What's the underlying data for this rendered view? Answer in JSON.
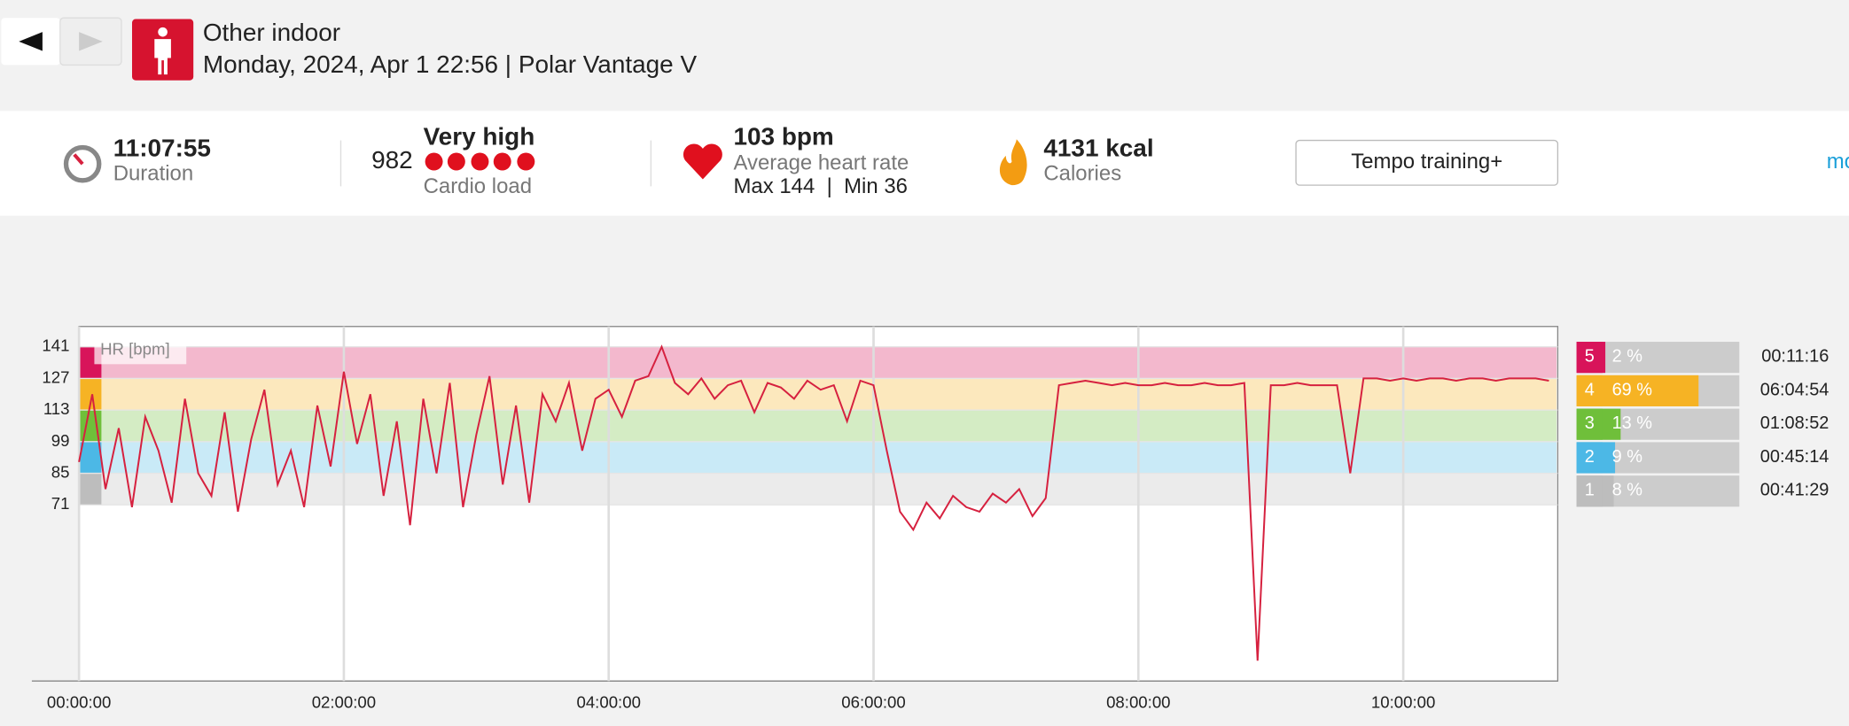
{
  "header": {
    "title": "Other indoor",
    "subtitle": "Monday, 2024, Apr 1 22:56 | Polar Vantage V"
  },
  "stats": {
    "duration": "11:07:55",
    "duration_label": "Duration",
    "cardio_value": "982",
    "cardio_level": "Very high",
    "cardio_label": "Cardio load",
    "avg_hr": "103 bpm",
    "avg_hr_label": "Average heart rate",
    "max_min": "Max 144  |  Min 36",
    "calories": "4131 kcal",
    "calories_label": "Calories",
    "training_button": "Tempo training+",
    "more": "mo"
  },
  "chart_data": {
    "type": "line",
    "y_label": "HR [bpm]",
    "color": "#d6213f",
    "xlim": [
      0,
      40200
    ],
    "ylim": [
      -7,
      150
    ],
    "xticks": [
      {
        "value": 0,
        "label": "00:00:00"
      },
      {
        "value": 7200,
        "label": "02:00:00"
      },
      {
        "value": 14400,
        "label": "04:00:00"
      },
      {
        "value": 21600,
        "label": "06:00:00"
      },
      {
        "value": 28800,
        "label": "08:00:00"
      },
      {
        "value": 36000,
        "label": "10:00:00"
      }
    ],
    "yticks": [
      141,
      127,
      113,
      99,
      85,
      71
    ],
    "x": [
      0,
      360,
      720,
      1080,
      1440,
      1800,
      2160,
      2520,
      2880,
      3240,
      3600,
      3960,
      4320,
      4680,
      5040,
      5400,
      5760,
      6120,
      6480,
      6840,
      7200,
      7560,
      7920,
      8280,
      8640,
      9000,
      9360,
      9720,
      10080,
      10440,
      10800,
      11160,
      11520,
      11880,
      12240,
      12600,
      12960,
      13320,
      13680,
      14040,
      14400,
      14760,
      15120,
      15480,
      15840,
      16200,
      16560,
      16920,
      17280,
      17640,
      18000,
      18360,
      18720,
      19080,
      19440,
      19800,
      20160,
      20520,
      20880,
      21240,
      21600,
      21960,
      22320,
      22680,
      23040,
      23400,
      23760,
      24120,
      24480,
      24840,
      25200,
      25560,
      25920,
      26280,
      26640,
      27000,
      27360,
      27720,
      28080,
      28440,
      28800,
      29160,
      29520,
      29880,
      30240,
      30600,
      30960,
      31320,
      31680,
      32040,
      32400,
      32760,
      33120,
      33480,
      33840,
      34200,
      34560,
      34920,
      35280,
      35640,
      36000,
      36360,
      36720,
      37080,
      37440,
      37800,
      38160,
      38520,
      38880,
      39240,
      39600,
      39960
    ],
    "values": [
      90,
      120,
      78,
      105,
      70,
      110,
      95,
      72,
      118,
      85,
      75,
      112,
      68,
      100,
      122,
      80,
      95,
      70,
      115,
      88,
      130,
      98,
      120,
      75,
      108,
      62,
      118,
      85,
      125,
      70,
      102,
      128,
      80,
      115,
      72,
      120,
      108,
      125,
      95,
      118,
      122,
      110,
      126,
      128,
      141,
      125,
      120,
      127,
      118,
      124,
      126,
      112,
      125,
      123,
      118,
      126,
      122,
      124,
      108,
      126,
      124,
      95,
      68,
      60,
      72,
      65,
      75,
      70,
      68,
      76,
      72,
      78,
      66,
      74,
      124,
      125,
      126,
      125,
      124,
      125,
      124,
      124,
      125,
      124,
      124,
      125,
      124,
      124,
      125,
      2,
      124,
      124,
      125,
      124,
      124,
      124,
      85,
      127,
      127,
      126,
      127,
      126,
      127,
      127,
      126,
      127,
      127,
      126,
      127,
      127,
      127,
      126
    ],
    "zones": {
      "labels": [
        "5",
        "4",
        "3",
        "2",
        "1"
      ],
      "percents": [
        2,
        69,
        13,
        9,
        8
      ],
      "value_labels": [
        "2 %",
        "69 %",
        "13 %",
        "9 %",
        "8 %"
      ],
      "durations": [
        "00:11:16",
        "06:04:54",
        "01:08:52",
        "00:45:14",
        "00:41:29"
      ],
      "colors": [
        "#d8145a",
        "#f6b324",
        "#6fbf3a",
        "#4cb8e6",
        "#bdbdbd"
      ]
    }
  }
}
